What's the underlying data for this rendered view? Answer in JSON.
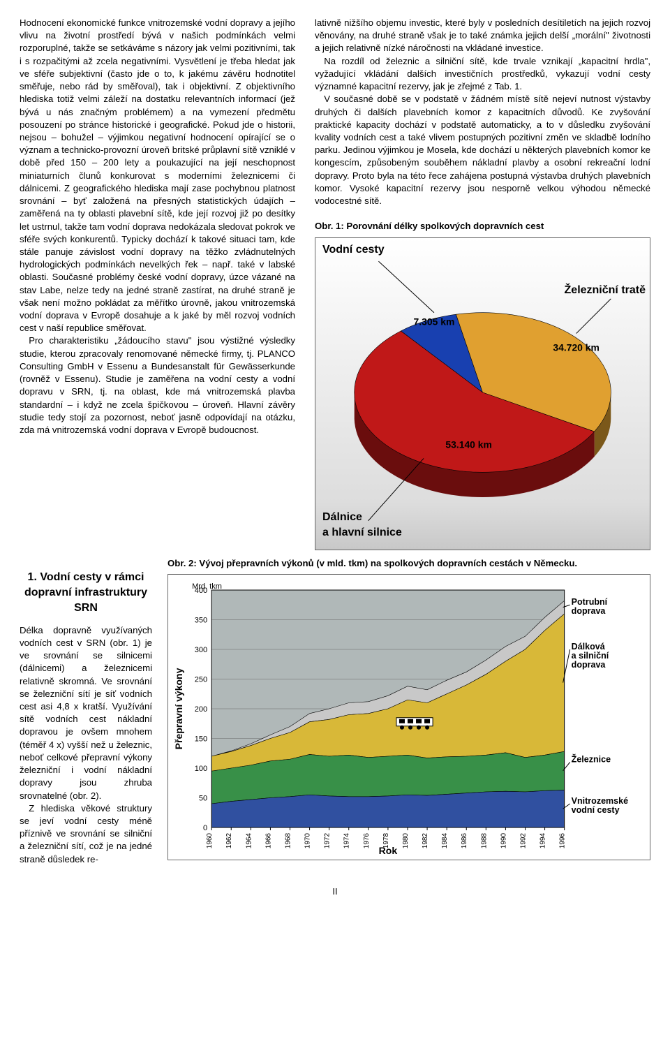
{
  "left_text": "Hodnocení ekonomické funkce vnitrozemské vodní dopravy a jejího vlivu na životní prostředí bývá v našich podmínkách velmi rozporuplné, takže se setkáváme s názory jak velmi pozitivními, tak i s rozpačitými až zcela negativními. Vysvětlení je třeba hledat jak ve sféře subjektivní (často jde o to, k jakému závěru hodnotitel směřuje, nebo rád by směřoval), tak i objektivní. Z objektivního hlediska totiž velmi záleží na dostatku relevantních informací (jež bývá u nás značným problémem) a na vymezení předmětu posouzení po stránce historické i geografické. Pokud jde o historii, nejsou – bohužel – výjimkou negativní hodnocení opírající se o význam a technicko-provozní úroveň britské průplavní sítě vzniklé v době před 150 – 200 lety a poukazující na její neschopnost miniaturních člunů konkurovat s moderními železnicemi či dálnicemi. Z geografického hlediska mají zase pochybnou platnost srovnání – byť založená na přesných statistických údajích – zaměřená na ty oblasti plavební sítě, kde její rozvoj již po desítky let ustrnul, takže tam vodní doprava nedokázala sledovat pokrok ve sféře svých konkurentů. Typicky dochází k takové situaci tam, kde stále panuje závislost vodní dopravy na těžko zvládnutelných hydrologických podmínkách nevelkých řek – např. také v labské oblasti. Současné problémy české vodní dopravy, úzce vázané na stav Labe, nelze tedy na jedné straně zastírat, na druhé straně je však není možno pokládat za měřítko úrovně, jakou vnitrozemská vodní doprava v Evropě dosahuje a k jaké by měl rozvoj vodních cest v naší republice směřovat.",
  "left_text_2": "Pro charakteristiku „žádoucího stavu\" jsou výstižné výsledky studie, kterou zpracovaly renomované německé firmy, tj. PLANCO Consulting GmbH v Essenu a Bundesanstalt für Gewässerkunde (rovněž v Essenu). Studie je zaměřena na vodní cesty a vodní dopravu v SRN, tj. na oblast, kde má vnitrozemská plavba standardní – i když ne zcela špičkovou – úroveň. Hlavní závěry studie tedy stojí za pozornost, neboť jasně odpovídají na otázku, zda má vnitrozemská vodní doprava v Evropě budoucnost.",
  "right_text_1": "lativně nižšího objemu investic, které byly v posledních desítiletích na jejich rozvoj věnovány, na druhé straně však je to také známka jejich delší „morální\" životnosti a jejich relativně nízké náročnosti na vkládané investice.",
  "right_text_2": "Na rozdíl od železnic a silniční sítě, kde trvale vznikají „kapacitní hrdla\", vyžadující vkládání dalších investičních prostředků, vykazují vodní cesty významné kapacitní rezervy, jak je zřejmé z Tab. 1.",
  "right_text_3": "V současné době se v podstatě v žádném místě sítě nejeví nutnost výstavby druhých či dalších plavebních komor z kapacitních důvodů. Ke zvyšování praktické kapacity dochází v podstatě automaticky, a to v důsledku zvyšování kvality vodních cest a také vlivem postupných pozitivní změn ve skladbě lodního parku. Jedinou výjimkou je Mosela, kde dochází u některých plavebních komor ke kongescím, způsobeným souběhem nákladní plavby a osobní rekreační lodní dopravy. Proto byla na této řece zahájena postupná výstavba druhých plavebních komor. Vysoké kapacitní rezervy jsou nesporně velkou výhodou německé vodocestné sítě.",
  "fig1_title": "Obr. 1: Porovnání délky spolkových dopravních cest",
  "pie": {
    "slices": [
      {
        "label": "Vodní cesty",
        "value_label": "7.305 km",
        "value": 7305,
        "color": "#1840b0"
      },
      {
        "label": "Železniční tratě",
        "value_label": "34.720 km",
        "value": 34720,
        "color": "#e0a030"
      },
      {
        "label": "Dálnice\na hlavní silnice",
        "value_label": "53.140 km",
        "value": 53140,
        "color": "#c01818"
      }
    ],
    "side_color": "#701010",
    "background_gradient": [
      "#ffffff",
      "#c8c8c8"
    ]
  },
  "section1_heading": "1. Vodní cesty v rámci dopravní infrastruktury SRN",
  "section1_p1": "Délka dopravně využívaných vodních cest v SRN (obr. 1) je ve srovnání se silnicemi (dálnicemi) a železnicemi relativně skromná. Ve srovnání se železniční sítí je síť vodních cest asi 4,8 x kratší. Využívání sítě vodních cest nákladní dopravou je ovšem mnohem (téměř 4 x) vyšší než u železnic, neboť celkové přepravní výkony železniční i vodní nákladní dopravy jsou zhruba srovnatelné (obr. 2).",
  "section1_p2": "Z hlediska věkové struktury se jeví vodní cesty méně příznivě ve srovnání se silniční a železniční sítí, což je na jedné straně důsledek re-",
  "fig2_title": "Obr. 2: Vývoj přepravních výkonů (v mld. tkm) na spolkových dopravních cestách v Německu.",
  "area": {
    "y_unit": "Mrd. tkm",
    "y_label": "Přepravní výkony",
    "x_label": "Rok",
    "ylim": [
      0,
      400
    ],
    "ytick_step": 50,
    "years": [
      1960,
      1962,
      1964,
      1966,
      1968,
      1970,
      1972,
      1974,
      1976,
      1978,
      1980,
      1982,
      1984,
      1986,
      1988,
      1990,
      1992,
      1994,
      1996
    ],
    "background": "#b0b8b8",
    "grid_color": "#666666",
    "series": [
      {
        "name": "Vnitrozemské vodní cesty",
        "label": "Vnitrozemské\nvodní cesty",
        "color": "#3050a0",
        "cum": [
          40,
          44,
          47,
          50,
          52,
          55,
          53,
          52,
          52,
          53,
          55,
          54,
          56,
          58,
          60,
          61,
          60,
          62,
          63
        ]
      },
      {
        "name": "Železnice",
        "label": "Železnice",
        "color": "#389048",
        "cum": [
          95,
          100,
          105,
          112,
          115,
          123,
          120,
          122,
          118,
          120,
          122,
          117,
          119,
          120,
          122,
          126,
          118,
          122,
          128
        ]
      },
      {
        "name": "Dálková a silniční doprava",
        "label": "Dálková\na silniční\ndoprava",
        "color": "#d8b838",
        "cum": [
          120,
          128,
          138,
          150,
          160,
          178,
          182,
          190,
          192,
          200,
          215,
          210,
          225,
          240,
          258,
          280,
          300,
          332,
          360
        ]
      },
      {
        "name": "Potrubní doprava",
        "label": "Potrubní\ndoprava",
        "color": "#c8c8c8",
        "cum": [
          120,
          129,
          141,
          156,
          170,
          192,
          200,
          210,
          212,
          222,
          238,
          232,
          248,
          262,
          282,
          305,
          322,
          354,
          382
        ]
      }
    ]
  },
  "page_number": "II"
}
